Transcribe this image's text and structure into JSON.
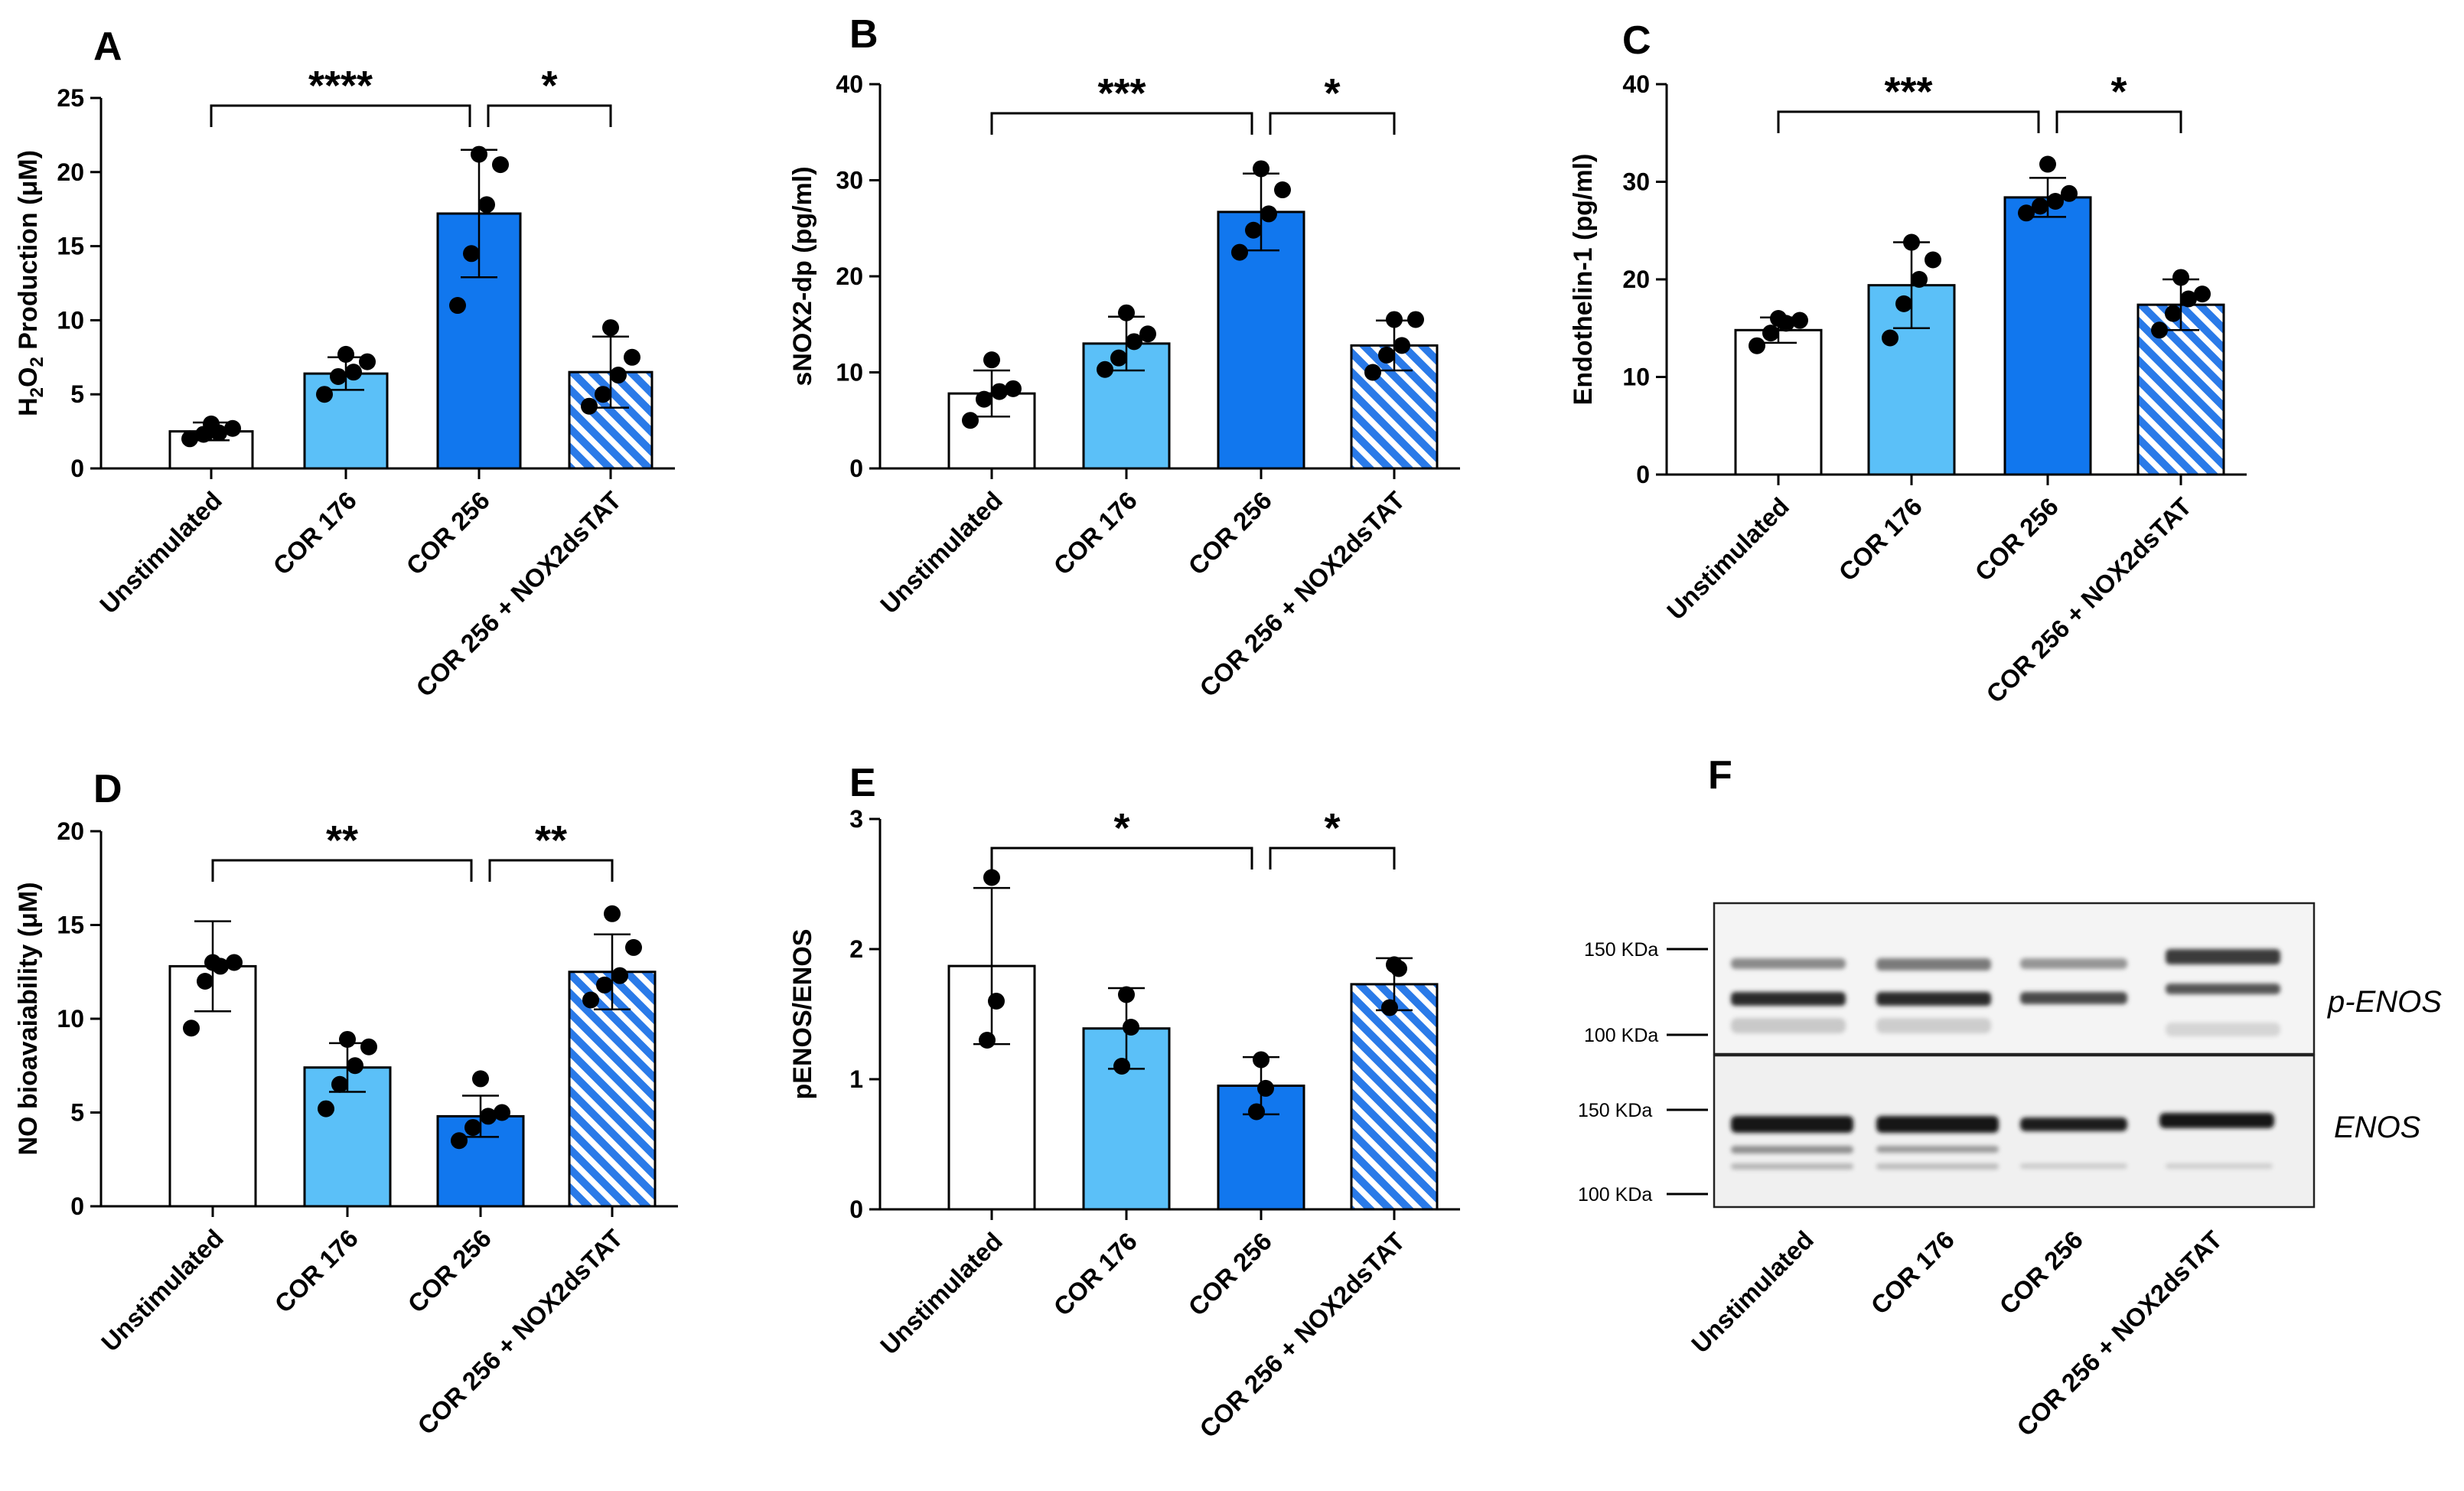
{
  "colors": {
    "unstimulated": "#ffffff",
    "cor176": "#5bc0f8",
    "cor256": "#1177ee",
    "hatch": "#2a7ae8"
  },
  "chart_data": [
    {
      "panel": "A",
      "type": "bar",
      "ylabel": "H2O2 Production (μM)",
      "ylabel_parts": [
        "H",
        "2",
        "O",
        "2",
        " Production (",
        "μ",
        "M)"
      ],
      "ylim": [
        0,
        25
      ],
      "yticks": [
        0,
        5,
        10,
        15,
        20,
        25
      ],
      "categories": [
        "Unstimulated",
        "COR 176",
        "COR 256",
        "COR 256 + NOX2dsTAT"
      ],
      "values": [
        2.5,
        6.4,
        17.2,
        6.5
      ],
      "sd": [
        0.6,
        1.1,
        4.3,
        2.4
      ],
      "points": [
        [
          2.0,
          2.3,
          2.4,
          2.7,
          3.0
        ],
        [
          5.0,
          6.2,
          6.5,
          7.2,
          7.7
        ],
        [
          11.0,
          14.5,
          17.8,
          20.5,
          21.2
        ],
        [
          4.2,
          5.0,
          6.3,
          7.5,
          9.5
        ]
      ],
      "significance": [
        {
          "from": 0,
          "to": 2,
          "label": "****"
        },
        {
          "from": 2,
          "to": 3,
          "label": "*"
        }
      ]
    },
    {
      "panel": "B",
      "type": "bar",
      "ylabel": "sNOX2-dp (pg/ml)",
      "ylim": [
        0,
        40
      ],
      "yticks": [
        0,
        10,
        20,
        30,
        40
      ],
      "categories": [
        "Unstimulated",
        "COR 176",
        "COR 256",
        "COR 256 + NOX2dsTAT"
      ],
      "values": [
        7.8,
        13.0,
        26.7,
        12.8
      ],
      "sd": [
        2.4,
        2.8,
        4.0,
        2.6
      ],
      "points": [
        [
          5.0,
          7.2,
          8.0,
          8.3,
          11.3
        ],
        [
          10.3,
          11.5,
          13.2,
          14.0,
          16.2
        ],
        [
          22.5,
          24.8,
          26.5,
          29.0,
          31.2
        ],
        [
          10.0,
          11.8,
          12.8,
          15.5,
          15.5
        ]
      ],
      "significance": [
        {
          "from": 0,
          "to": 2,
          "label": "***"
        },
        {
          "from": 2,
          "to": 3,
          "label": "*"
        }
      ]
    },
    {
      "panel": "C",
      "type": "bar",
      "ylabel": "Endothelin-1 (pg/ml)",
      "ylim": [
        0,
        40
      ],
      "yticks": [
        0,
        10,
        20,
        30,
        40
      ],
      "categories": [
        "Unstimulated",
        "COR 176",
        "COR 256",
        "COR 256 + NOX2dsTAT"
      ],
      "values": [
        14.8,
        19.4,
        28.4,
        17.4
      ],
      "sd": [
        1.3,
        4.4,
        2.0,
        2.6
      ],
      "points": [
        [
          13.2,
          14.5,
          15.5,
          15.8,
          16.0
        ],
        [
          14.0,
          17.5,
          20.0,
          22.0,
          23.8
        ],
        [
          26.8,
          27.5,
          28.0,
          28.8,
          31.8
        ],
        [
          14.8,
          16.5,
          18.0,
          18.5,
          20.2
        ]
      ],
      "significance": [
        {
          "from": 0,
          "to": 2,
          "label": "***"
        },
        {
          "from": 2,
          "to": 3,
          "label": "*"
        }
      ]
    },
    {
      "panel": "D",
      "type": "bar",
      "ylabel": "NO bioavaiability (μM)",
      "ylabel_parts": [
        "NO bioavaiability  (",
        "μ",
        "M)"
      ],
      "ylim": [
        0,
        20
      ],
      "yticks": [
        0,
        5,
        10,
        15,
        20
      ],
      "categories": [
        "Unstimulated",
        "COR 176",
        "COR 256",
        "COR 256 + NOX2dsTAT"
      ],
      "values": [
        12.8,
        7.4,
        4.8,
        12.5
      ],
      "sd": [
        2.4,
        1.3,
        1.1,
        2.0
      ],
      "points": [
        [
          9.5,
          12.0,
          12.8,
          13.0,
          13.0
        ],
        [
          5.2,
          6.5,
          7.5,
          8.5,
          8.9
        ],
        [
          3.5,
          4.2,
          4.8,
          5.0,
          6.8
        ],
        [
          11.0,
          11.8,
          12.3,
          13.8,
          15.6
        ]
      ],
      "significance": [
        {
          "from": 0,
          "to": 2,
          "label": "**"
        },
        {
          "from": 2,
          "to": 3,
          "label": "**"
        }
      ]
    },
    {
      "panel": "E",
      "type": "bar",
      "ylabel": "pENOS/ENOS",
      "ylim": [
        0,
        3
      ],
      "yticks": [
        0,
        1,
        2,
        3
      ],
      "categories": [
        "Unstimulated",
        "COR 176",
        "COR 256",
        "COR 256 + NOX2dsTAT"
      ],
      "values": [
        1.87,
        1.39,
        0.95,
        1.73
      ],
      "sd": [
        0.6,
        0.31,
        0.22,
        0.2
      ],
      "points": [
        [
          1.3,
          1.6,
          2.55
        ],
        [
          1.1,
          1.4,
          1.65
        ],
        [
          0.75,
          0.93,
          1.15
        ],
        [
          1.55,
          1.85,
          1.88
        ]
      ],
      "significance": [
        {
          "from": 0,
          "to": 2,
          "label": "*"
        },
        {
          "from": 2,
          "to": 3,
          "label": "*"
        }
      ]
    }
  ],
  "blot": {
    "panel": "F",
    "markers": {
      "top": "150 KDa",
      "bottom": "100 KDa"
    },
    "labels": {
      "top": "p-ENOS",
      "bottom": "ENOS"
    },
    "lanes": [
      "Unstimulated",
      "COR 176",
      "COR 256",
      "COR 256 + NOX2dsTAT"
    ]
  }
}
